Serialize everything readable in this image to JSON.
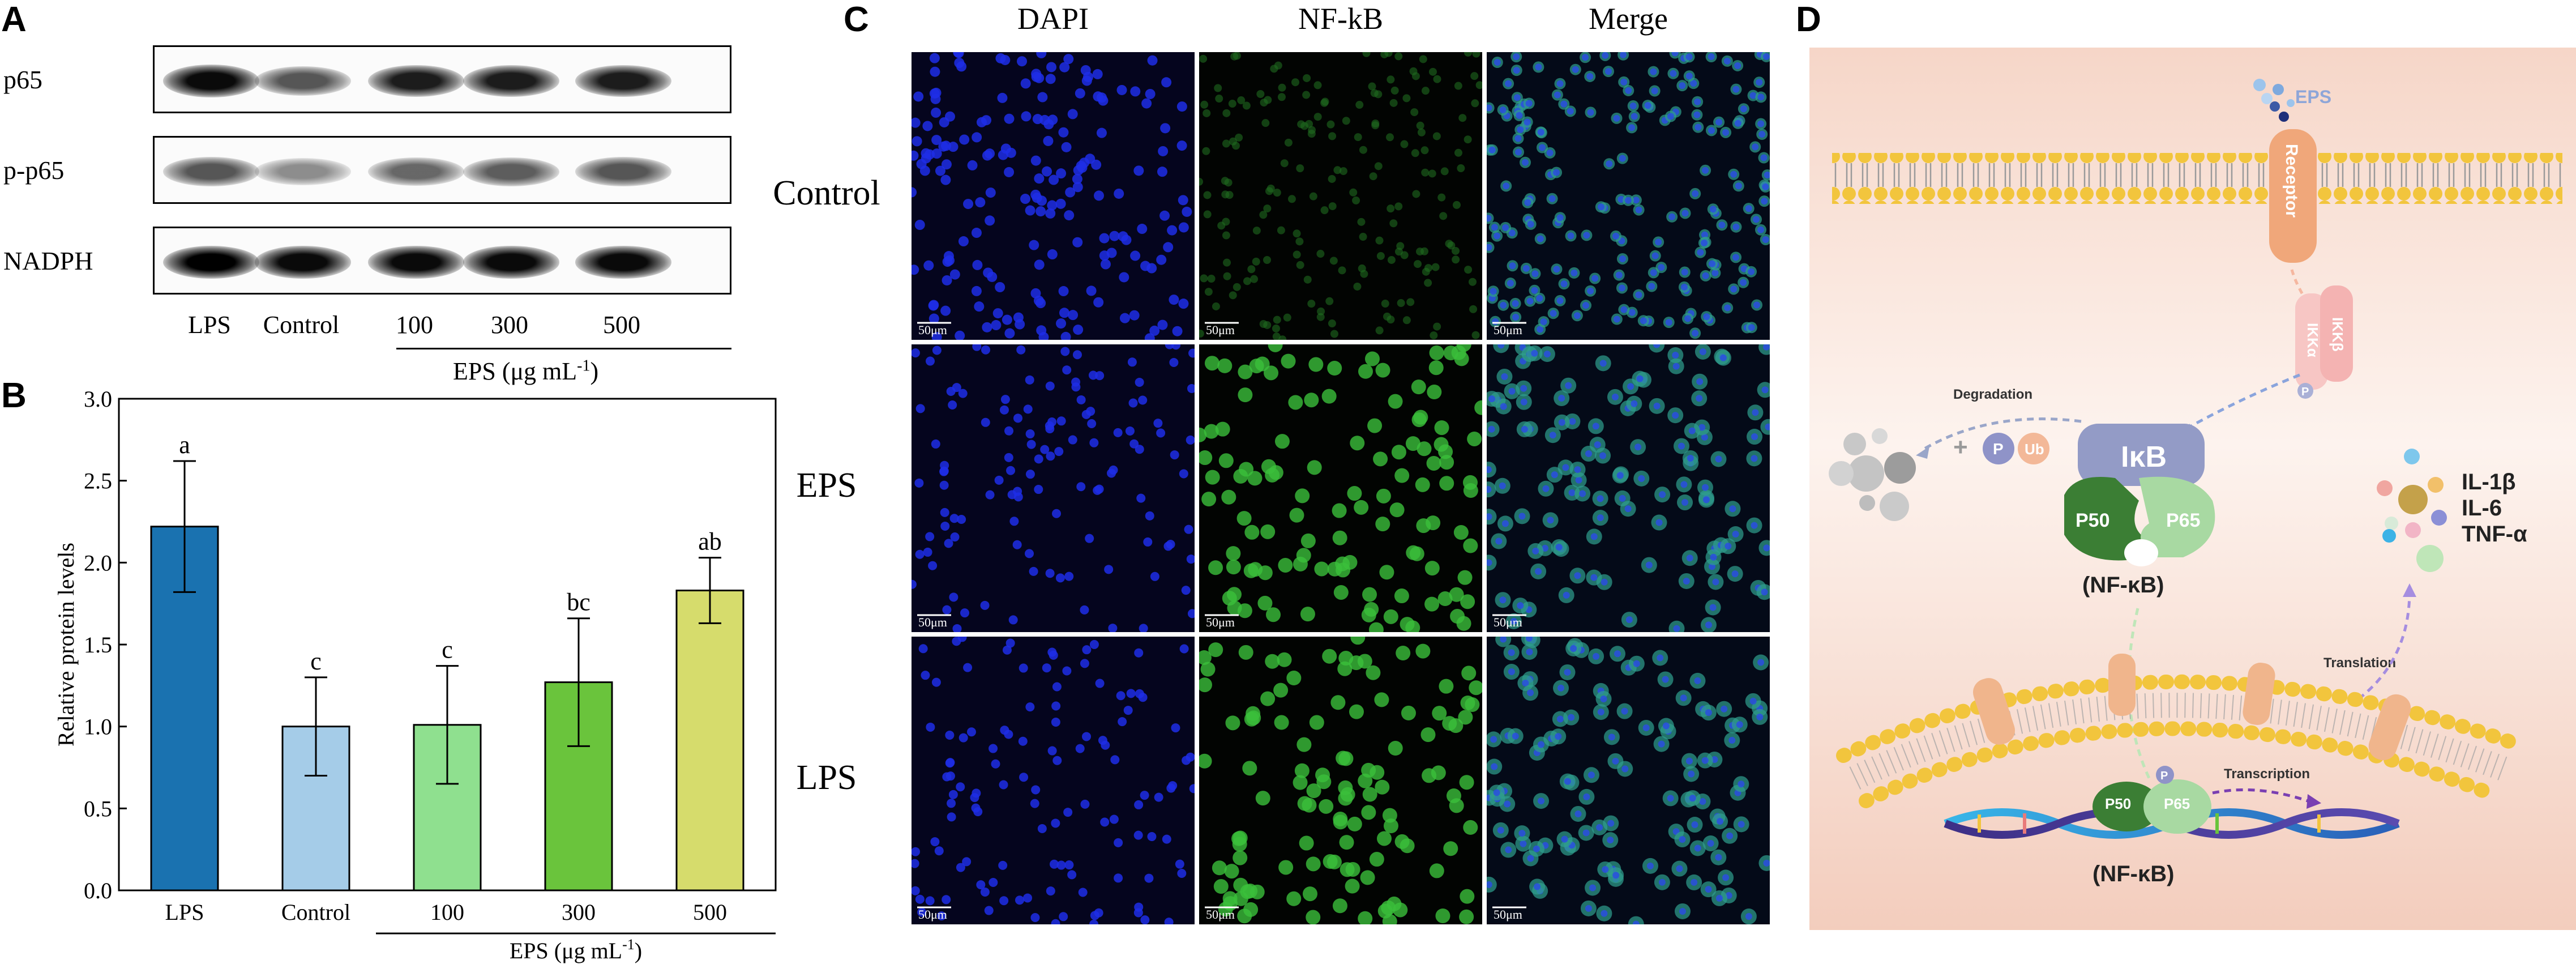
{
  "panels": {
    "a": "A",
    "b": "B",
    "c": "C",
    "d": "D"
  },
  "blot": {
    "rows": [
      {
        "label": "p65",
        "intensity": [
          0.95,
          0.55,
          0.85,
          0.85,
          0.85
        ]
      },
      {
        "label": "p-p65",
        "intensity": [
          0.55,
          0.25,
          0.45,
          0.5,
          0.55
        ]
      },
      {
        "label": "NADPH",
        "intensity": [
          1.0,
          0.95,
          0.95,
          0.95,
          0.95
        ]
      }
    ],
    "lanes": [
      "LPS",
      "Control",
      "100",
      "300",
      "500"
    ],
    "group_label": "EPS (μg mL",
    "group_sup": "-1",
    "group_close": ")"
  },
  "chart_data": {
    "type": "bar",
    "categories": [
      "LPS",
      "Control",
      "100",
      "300",
      "500"
    ],
    "values": [
      2.22,
      1.0,
      1.01,
      1.27,
      1.83
    ],
    "errors": [
      0.4,
      0.3,
      0.36,
      0.39,
      0.2
    ],
    "letters": [
      "a",
      "c",
      "c",
      "bc",
      "ab"
    ],
    "colors": [
      "#1a72b0",
      "#a5cce8",
      "#8fe08f",
      "#6ac43c",
      "#d6dc6c"
    ],
    "ylabel": "Relative protein levels",
    "ylim": [
      0.0,
      3.0
    ],
    "yticks": [
      "0.0",
      "0.5",
      "1.0",
      "1.5",
      "2.0",
      "2.5",
      "3.0"
    ],
    "group_label": "EPS (μg mL",
    "group_sup": "-1",
    "group_close": ")"
  },
  "micrographs": {
    "columns": [
      "DAPI",
      "NF-kB",
      "Merge"
    ],
    "rows": [
      "Control",
      "EPS",
      "LPS"
    ],
    "scale_label": "50μm"
  },
  "diagram": {
    "eps": "EPS",
    "receptor": "Receptor",
    "ikkb": "IKKβ",
    "ikka": "IKKα",
    "p": "P",
    "degradation": "Degradation",
    "ub": "Ub",
    "ikb": "IκB",
    "p50": "P50",
    "p65": "P65",
    "nfkb": "(NF-κB)",
    "cytokines": [
      "IL-1β",
      "IL-6",
      "TNF-α"
    ],
    "translation": "Translation",
    "transcription": "Transcription"
  }
}
